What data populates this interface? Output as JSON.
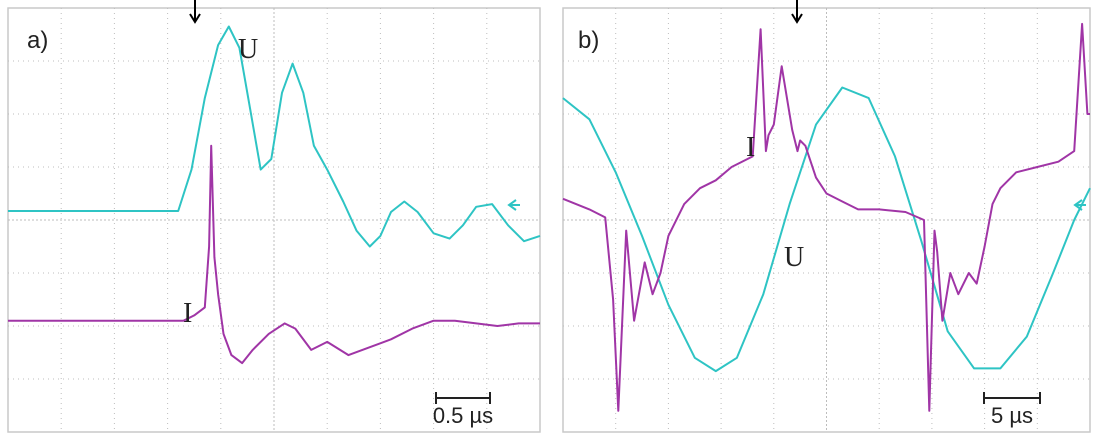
{
  "colors": {
    "voltage": "#2ec4c4",
    "current": "#a035a6",
    "grid": "#bdbdbd",
    "border": "#c9c9c9",
    "marker": "#000000"
  },
  "chart_data": [
    {
      "type": "line",
      "panel_label": "a)",
      "grid": true,
      "scale_bar_label": "0.5 µs",
      "xlim": [
        0,
        10
      ],
      "ylim": [
        0,
        8
      ],
      "series": [
        {
          "name": "U",
          "color": "#2ec4c4",
          "x": [
            0,
            3.2,
            3.45,
            3.7,
            3.95,
            4.15,
            4.35,
            4.55,
            4.75,
            4.95,
            5.15,
            5.35,
            5.55,
            5.75,
            6.0,
            6.3,
            6.55,
            6.8,
            7.0,
            7.2,
            7.45,
            7.7,
            8.0,
            8.3,
            8.55,
            8.8,
            9.1,
            9.4,
            9.7,
            10.0
          ],
          "y": [
            4.17,
            4.17,
            4.95,
            6.3,
            7.3,
            7.65,
            7.25,
            6.1,
            4.95,
            5.15,
            6.4,
            6.95,
            6.4,
            5.4,
            4.95,
            4.35,
            3.8,
            3.5,
            3.7,
            4.15,
            4.35,
            4.15,
            3.75,
            3.65,
            3.9,
            4.25,
            4.3,
            3.9,
            3.6,
            3.7
          ]
        },
        {
          "name": "I",
          "color": "#a035a6",
          "x": [
            0,
            3.3,
            3.5,
            3.7,
            3.78,
            3.82,
            3.88,
            3.95,
            4.05,
            4.2,
            4.4,
            4.6,
            4.9,
            5.2,
            5.4,
            5.7,
            6.0,
            6.4,
            6.8,
            7.2,
            7.6,
            8.0,
            8.4,
            8.8,
            9.2,
            9.6,
            10.0
          ],
          "y": [
            2.1,
            2.1,
            2.2,
            2.35,
            3.5,
            5.4,
            3.3,
            2.6,
            1.85,
            1.45,
            1.3,
            1.55,
            1.85,
            2.05,
            1.95,
            1.55,
            1.7,
            1.45,
            1.6,
            1.75,
            1.95,
            2.1,
            2.1,
            2.05,
            2.0,
            2.05,
            2.05
          ]
        }
      ]
    },
    {
      "type": "line",
      "panel_label": "b)",
      "grid": true,
      "scale_bar_label": "5 µs",
      "xlim": [
        0,
        10
      ],
      "ylim": [
        0,
        8
      ],
      "series": [
        {
          "name": "U",
          "color": "#2ec4c4",
          "x": [
            0,
            0.5,
            1.0,
            1.5,
            2.0,
            2.5,
            2.9,
            3.3,
            3.8,
            4.3,
            4.8,
            5.3,
            5.8,
            6.3,
            6.8,
            7.3,
            7.8,
            8.3,
            8.8,
            9.3,
            9.7,
            10.0
          ],
          "y": [
            6.3,
            5.9,
            4.9,
            3.7,
            2.4,
            1.4,
            1.15,
            1.4,
            2.6,
            4.3,
            5.8,
            6.5,
            6.3,
            5.2,
            3.6,
            1.9,
            1.2,
            1.2,
            1.8,
            3.0,
            4.0,
            4.6
          ],
          "inline_labels": [
            {
              "text": "U"
            }
          ]
        },
        {
          "name": "I",
          "color": "#a035a6",
          "x": [
            0,
            0.5,
            0.8,
            0.95,
            1.05,
            1.2,
            1.35,
            1.55,
            1.7,
            1.85,
            2.0,
            2.3,
            2.6,
            2.9,
            3.2,
            3.6,
            3.75,
            3.85,
            3.9,
            4.0,
            4.15,
            4.35,
            4.45,
            4.5,
            4.6,
            4.8,
            5.0,
            5.3,
            5.6,
            6.0,
            6.5,
            6.85,
            6.95,
            7.05,
            7.1,
            7.2,
            7.35,
            7.5,
            7.7,
            7.85,
            8.0,
            8.15,
            8.3,
            8.6,
            9.0,
            9.4,
            9.7,
            9.85,
            9.95,
            10.0
          ],
          "y": [
            4.4,
            4.2,
            4.05,
            2.5,
            0.4,
            3.8,
            2.1,
            3.2,
            2.6,
            3.0,
            3.7,
            4.3,
            4.6,
            4.75,
            5.0,
            5.2,
            7.6,
            5.3,
            5.6,
            5.8,
            6.9,
            5.7,
            5.3,
            5.5,
            5.4,
            4.8,
            4.5,
            4.35,
            4.2,
            4.2,
            4.15,
            4.0,
            0.4,
            3.8,
            3.4,
            2.1,
            3.0,
            2.6,
            3.0,
            2.8,
            3.5,
            4.3,
            4.6,
            4.9,
            5.0,
            5.1,
            5.3,
            7.7,
            6.0,
            6.0
          ]
        }
      ]
    }
  ]
}
